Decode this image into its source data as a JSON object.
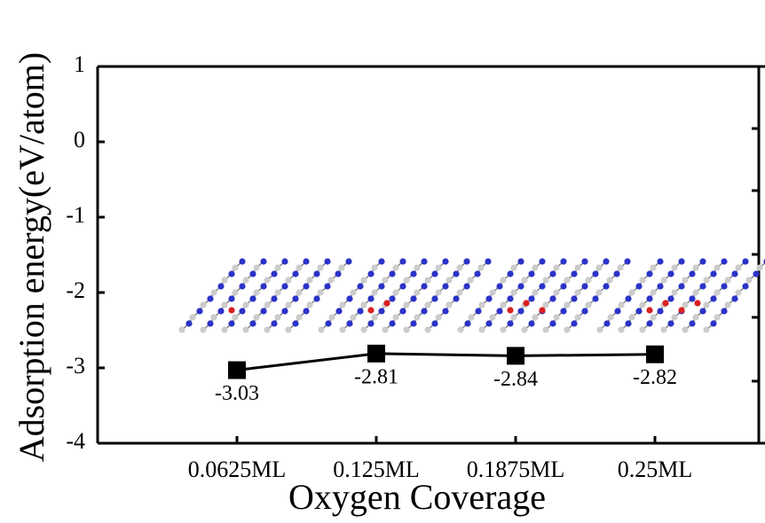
{
  "chart_data": {
    "type": "line",
    "x_label": "Oxygen Coverage",
    "y_label": "Adsorption energy(eV/atom)",
    "categories": [
      "0.0625ML",
      "0.125ML",
      "0.1875ML",
      "0.25ML"
    ],
    "values": [
      -3.03,
      -2.81,
      -2.84,
      -2.82
    ],
    "color": "#000000",
    "ylim": [
      -4,
      1
    ],
    "yticks": [
      1,
      0,
      -1,
      -2,
      -3,
      -4
    ]
  }
}
